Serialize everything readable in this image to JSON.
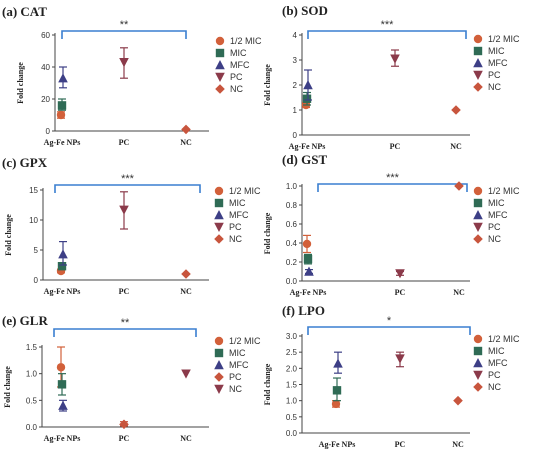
{
  "styles": {
    "half_mic": {
      "marker": "circle",
      "color": "#d2603a"
    },
    "mic": {
      "marker": "square",
      "color": "#2f6b55"
    },
    "mfc": {
      "marker": "triangle-up",
      "color": "#3d3f86"
    },
    "pc": {
      "marker": "triangle-down",
      "color": "#8b3a4a"
    },
    "nc": {
      "marker": "diamond",
      "color": "#c8553d"
    },
    "bracket_color": "#3a7fd0"
  },
  "chart_data": [
    {
      "type": "scatter",
      "title": "(a) CAT",
      "ylabel": "Fold change",
      "categories": [
        "Ag-Fe NPs",
        "PC",
        "NC"
      ],
      "ylim": [
        0,
        60
      ],
      "yticks": [
        0,
        20,
        40,
        60
      ],
      "significance": "**",
      "legend": [
        "1/2 MIC",
        "MIC",
        "MFC",
        "PC",
        "NC"
      ],
      "series": [
        {
          "name": "1/2 MIC",
          "style": "half_mic",
          "category": "Ag-Fe NPs",
          "value": 10,
          "error": [
            8,
            12
          ]
        },
        {
          "name": "MIC",
          "style": "mic",
          "category": "Ag-Fe NPs",
          "value": 16,
          "error": [
            13,
            20
          ]
        },
        {
          "name": "MFC",
          "style": "mfc",
          "category": "Ag-Fe NPs",
          "value": 33,
          "error": [
            27,
            40
          ]
        },
        {
          "name": "PC",
          "style": "pc",
          "category": "PC",
          "value": 43,
          "error": [
            33,
            52
          ]
        },
        {
          "name": "NC",
          "style": "nc",
          "category": "NC",
          "value": 1,
          "error": [
            1,
            1
          ]
        }
      ]
    },
    {
      "type": "scatter",
      "title": "(b) SOD",
      "ylabel": "Fold change",
      "categories": [
        "Ag-Fe NPs",
        "PC",
        "NC"
      ],
      "ylim": [
        0,
        4
      ],
      "yticks": [
        0,
        1,
        2,
        3,
        4
      ],
      "significance": "***",
      "legend": [
        "1/2 MIC",
        "MIC",
        "MFC",
        "PC",
        "NC"
      ],
      "series": [
        {
          "name": "1/2 MIC",
          "style": "half_mic",
          "category": "Ag-Fe NPs",
          "value": 1.2,
          "error": [
            1.1,
            1.3
          ]
        },
        {
          "name": "MIC",
          "style": "mic",
          "category": "Ag-Fe NPs",
          "value": 1.45,
          "error": [
            1.2,
            1.7
          ]
        },
        {
          "name": "MFC",
          "style": "mfc",
          "category": "Ag-Fe NPs",
          "value": 2.0,
          "error": [
            1.4,
            2.6
          ]
        },
        {
          "name": "PC",
          "style": "pc",
          "category": "PC",
          "value": 3.05,
          "error": [
            2.75,
            3.4
          ]
        },
        {
          "name": "NC",
          "style": "nc",
          "category": "NC",
          "value": 1,
          "error": [
            1,
            1
          ]
        }
      ]
    },
    {
      "type": "scatter",
      "title": "(c) GPX",
      "ylabel": "Fold change",
      "categories": [
        "Ag-Fe NPs",
        "PC",
        "NC"
      ],
      "ylim": [
        0,
        15
      ],
      "yticks": [
        0,
        5,
        10,
        15
      ],
      "significance": "***",
      "legend": [
        "1/2 MIC",
        "MIC",
        "MFC",
        "PC",
        "NC"
      ],
      "series": [
        {
          "name": "1/2 MIC",
          "style": "half_mic",
          "category": "Ag-Fe NPs",
          "value": 1.5,
          "error": [
            1.2,
            1.8
          ]
        },
        {
          "name": "MIC",
          "style": "mic",
          "category": "Ag-Fe NPs",
          "value": 2.3,
          "error": [
            1.8,
            2.8
          ]
        },
        {
          "name": "MFC",
          "style": "mfc",
          "category": "Ag-Fe NPs",
          "value": 4.3,
          "error": [
            2.5,
            6.4
          ]
        },
        {
          "name": "PC",
          "style": "pc",
          "category": "PC",
          "value": 11.7,
          "error": [
            8.5,
            14.7
          ]
        },
        {
          "name": "NC",
          "style": "nc",
          "category": "NC",
          "value": 1,
          "error": [
            1,
            1
          ]
        }
      ]
    },
    {
      "type": "scatter",
      "title": "(d) GST",
      "ylabel": "Fold change",
      "categories": [
        "Ag-Fe NPs",
        "PC",
        "NC"
      ],
      "ylim": [
        0,
        1.0
      ],
      "yticks": [
        0.0,
        0.2,
        0.4,
        0.6,
        0.8,
        1.0
      ],
      "significance": "***",
      "legend": [
        "1/2 MIC",
        "MIC",
        "MFC",
        "PC",
        "NC"
      ],
      "series": [
        {
          "name": "1/2 MIC",
          "style": "half_mic",
          "category": "Ag-Fe NPs",
          "value": 0.39,
          "error": [
            0.3,
            0.48
          ]
        },
        {
          "name": "MIC",
          "style": "mic",
          "category": "Ag-Fe NPs",
          "value": 0.23,
          "error": [
            0.18,
            0.28
          ]
        },
        {
          "name": "MFC",
          "style": "mfc",
          "category": "Ag-Fe NPs",
          "value": 0.1,
          "error": [
            0.08,
            0.12
          ]
        },
        {
          "name": "PC",
          "style": "pc",
          "category": "PC",
          "value": 0.08,
          "error": [
            0.06,
            0.1
          ]
        },
        {
          "name": "NC",
          "style": "nc",
          "category": "NC",
          "value": 1.0,
          "error": [
            1.0,
            1.0
          ]
        }
      ]
    },
    {
      "type": "scatter",
      "title": "(e) GLR",
      "ylabel": "Fold change",
      "categories": [
        "Ag-Fe NPs",
        "PC",
        "NC"
      ],
      "ylim": [
        0,
        1.5
      ],
      "yticks": [
        0.0,
        0.5,
        1.0,
        1.5
      ],
      "significance": "**",
      "legend": [
        "1/2 MIC",
        "MIC",
        "MFC",
        "PC",
        "NC"
      ],
      "series": [
        {
          "name": "1/2 MIC",
          "style": "half_mic",
          "category": "Ag-Fe NPs",
          "value": 1.12,
          "error": [
            0.75,
            1.5
          ]
        },
        {
          "name": "MIC",
          "style": "mic",
          "category": "Ag-Fe NPs",
          "value": 0.8,
          "error": [
            0.6,
            1.0
          ]
        },
        {
          "name": "MFC",
          "style": "mfc",
          "category": "Ag-Fe NPs",
          "value": 0.4,
          "error": [
            0.3,
            0.5
          ]
        },
        {
          "name": "PC",
          "style": "nc",
          "category": "PC",
          "value": 0.05,
          "error": [
            0.02,
            0.1
          ]
        },
        {
          "name": "NC",
          "style": "pc",
          "category": "NC",
          "value": 1.0,
          "error": [
            1.0,
            1.0
          ]
        }
      ]
    },
    {
      "type": "scatter",
      "title": "(f) LPO",
      "ylabel": "Fold change",
      "categories": [
        "Ag-Fe NPs",
        "PC",
        "NC"
      ],
      "ylim": [
        0,
        3.0
      ],
      "yticks": [
        0.0,
        0.5,
        1.0,
        1.5,
        2.0,
        2.5,
        3.0
      ],
      "significance": "*",
      "legend": [
        "1/2 MIC",
        "MIC",
        "MFC",
        "PC",
        "NC"
      ],
      "series": [
        {
          "name": "1/2 MIC",
          "style": "half_mic",
          "category": "Ag-Fe NPs",
          "value": 0.9,
          "error": [
            0.8,
            1.0
          ]
        },
        {
          "name": "MIC",
          "style": "mic",
          "category": "Ag-Fe NPs",
          "value": 1.32,
          "error": [
            1.0,
            1.7
          ]
        },
        {
          "name": "MFC",
          "style": "mfc",
          "category": "Ag-Fe NPs",
          "value": 2.15,
          "error": [
            1.85,
            2.5
          ]
        },
        {
          "name": "PC",
          "style": "pc",
          "category": "PC",
          "value": 2.3,
          "error": [
            2.05,
            2.5
          ]
        },
        {
          "name": "NC",
          "style": "nc",
          "category": "NC",
          "value": 1.0,
          "error": [
            1.0,
            1.0
          ]
        }
      ]
    }
  ]
}
